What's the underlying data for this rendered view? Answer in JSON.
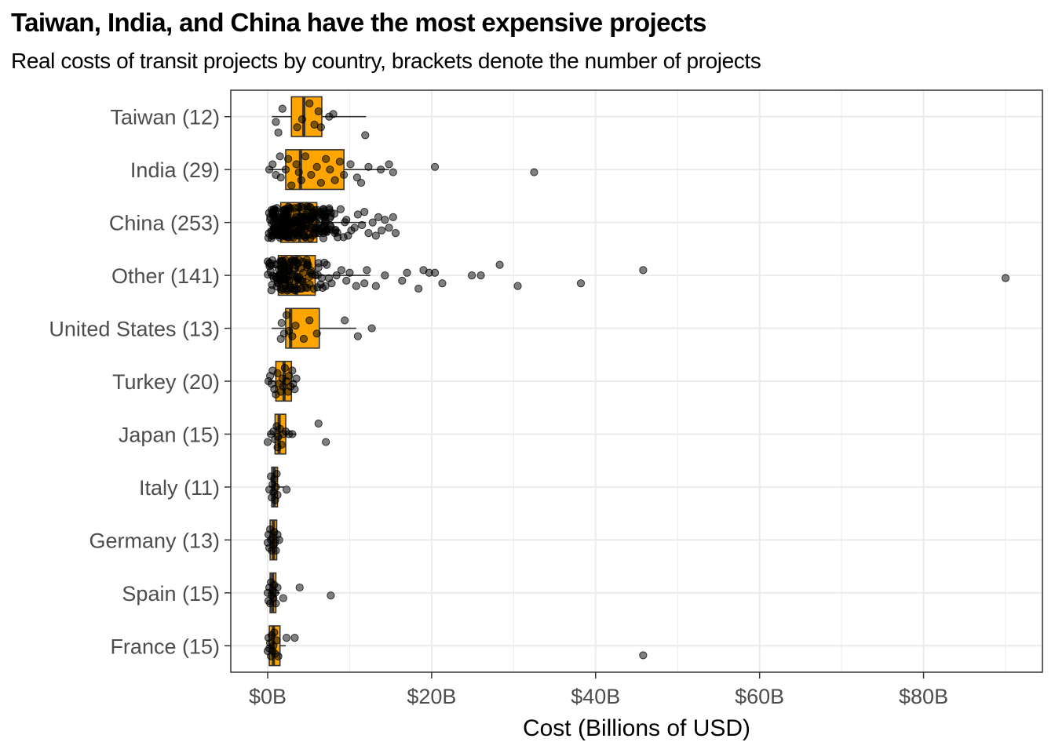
{
  "chart_data": {
    "type": "boxplot",
    "title": "Taiwan, India, and China have the most expensive projects",
    "subtitle": "Real costs of transit projects by country, brackets denote the number of projects",
    "xlabel": "Cost (Billions of USD)",
    "ylabel": "",
    "xlim": [
      -4.5,
      94.5
    ],
    "x_ticks": [
      0,
      20,
      40,
      60,
      80
    ],
    "x_tick_labels": [
      "$0B",
      "$20B",
      "$40B",
      "$60B",
      "$80B"
    ],
    "grid": true,
    "colors": {
      "box_fill": "#FFA500",
      "box_stroke": "#333333",
      "point": "#000000",
      "grid": "#ebebeb"
    },
    "categories": [
      {
        "label": "Taiwan (12)",
        "box": {
          "q1": 2.9,
          "median": 4.4,
          "q3": 6.6,
          "whisker_low": 0.5,
          "whisker_high": 12.0
        },
        "points": [
          [
            1.0,
            0.1
          ],
          [
            1.8,
            -0.15
          ],
          [
            1.3,
            0.3
          ],
          [
            3.6,
            0.2
          ],
          [
            4.2,
            0.05
          ],
          [
            5.1,
            -0.25
          ],
          [
            5.7,
            0.15
          ],
          [
            6.2,
            -0.1
          ],
          [
            6.5,
            0.2
          ],
          [
            7.5,
            0.0
          ],
          [
            11.9,
            0.35
          ],
          [
            8.0,
            -0.05
          ]
        ]
      },
      {
        "label": "India (29)",
        "box": {
          "q1": 2.2,
          "median": 4.0,
          "q3": 9.3,
          "whisker_low": 0.1,
          "whisker_high": 14.8
        },
        "points": [
          [
            0.2,
            0.0
          ],
          [
            0.6,
            -0.1
          ],
          [
            1.0,
            0.1
          ],
          [
            1.5,
            -0.25
          ],
          [
            1.6,
            0.15
          ],
          [
            2.2,
            0.0
          ],
          [
            2.5,
            -0.2
          ],
          [
            2.9,
            0.3
          ],
          [
            3.5,
            -0.1
          ],
          [
            3.8,
            0.05
          ],
          [
            4.1,
            0.2
          ],
          [
            4.6,
            -0.25
          ],
          [
            5.3,
            0.1
          ],
          [
            6.0,
            -0.05
          ],
          [
            6.5,
            0.25
          ],
          [
            7.1,
            -0.2
          ],
          [
            7.6,
            0.0
          ],
          [
            8.2,
            0.2
          ],
          [
            8.8,
            -0.15
          ],
          [
            9.3,
            0.1
          ],
          [
            10.1,
            -0.1
          ],
          [
            10.9,
            0.15
          ],
          [
            11.4,
            0.25
          ],
          [
            12.3,
            -0.05
          ],
          [
            13.8,
            0.0
          ],
          [
            14.8,
            -0.1
          ],
          [
            15.3,
            0.05
          ],
          [
            20.4,
            -0.05
          ],
          [
            32.5,
            0.05
          ]
        ]
      },
      {
        "label": "China (253)",
        "box": {
          "q1": 1.6,
          "median": 3.9,
          "q3": 6.0,
          "whisker_low": 0.0,
          "whisker_high": 12.0
        },
        "jitter": {
          "count": 220,
          "min": 0.0,
          "max": 10.0,
          "mode": 2.5
        },
        "points": [
          [
            10.6,
            0.1
          ],
          [
            11.0,
            -0.15
          ],
          [
            11.5,
            0.05
          ],
          [
            11.8,
            -0.2
          ],
          [
            12.3,
            0.2
          ],
          [
            12.8,
            0.0
          ],
          [
            13.2,
            0.25
          ],
          [
            13.5,
            -0.1
          ],
          [
            13.9,
            0.15
          ],
          [
            14.3,
            -0.05
          ],
          [
            14.8,
            0.1
          ],
          [
            15.3,
            -0.1
          ],
          [
            15.6,
            0.2
          ],
          [
            10.2,
            0.15
          ],
          [
            9.6,
            -0.05
          ],
          [
            9.8,
            0.25
          ],
          [
            8.9,
            -0.25
          ],
          [
            8.2,
            0.2
          ],
          [
            7.6,
            0.05
          ],
          [
            6.8,
            0.2
          ],
          [
            6.4,
            -0.2
          ],
          [
            5.2,
            0.3
          ],
          [
            4.8,
            -0.3
          ],
          [
            3.1,
            0.2
          ],
          [
            2.1,
            -0.25
          ],
          [
            1.4,
            0.1
          ],
          [
            0.6,
            0.25
          ],
          [
            0.3,
            -0.05
          ],
          [
            0.9,
            -0.2
          ],
          [
            1.7,
            0.05
          ],
          [
            2.7,
            0.15
          ],
          [
            3.5,
            -0.1
          ],
          [
            4.3,
            0.1
          ]
        ]
      },
      {
        "label": "Other (141)",
        "box": {
          "q1": 1.3,
          "median": 3.5,
          "q3": 5.8,
          "whisker_low": 0.0,
          "whisker_high": 12.5
        },
        "jitter": {
          "count": 112,
          "min": 0.0,
          "max": 8.0,
          "mode": 2.0
        },
        "points": [
          [
            90.0,
            0.05
          ],
          [
            45.8,
            -0.1
          ],
          [
            38.2,
            0.15
          ],
          [
            30.5,
            0.2
          ],
          [
            28.3,
            -0.2
          ],
          [
            26.0,
            0.0
          ],
          [
            24.9,
            0.0
          ],
          [
            21.3,
            0.15
          ],
          [
            20.4,
            -0.05
          ],
          [
            19.7,
            -0.05
          ],
          [
            19.0,
            -0.1
          ],
          [
            18.4,
            0.25
          ],
          [
            17.0,
            -0.05
          ],
          [
            16.4,
            0.1
          ],
          [
            14.3,
            0.0
          ],
          [
            13.2,
            0.2
          ],
          [
            12.1,
            -0.1
          ],
          [
            11.8,
            0.15
          ],
          [
            10.8,
            0.2
          ],
          [
            10.0,
            -0.05
          ],
          [
            9.6,
            0.1
          ],
          [
            9.0,
            -0.1
          ],
          [
            8.4,
            0.0
          ],
          [
            7.8,
            0.15
          ],
          [
            7.2,
            -0.2
          ],
          [
            6.6,
            0.05
          ],
          [
            6.2,
            -0.15
          ]
        ]
      },
      {
        "label": "United States (13)",
        "box": {
          "q1": 2.2,
          "median": 2.8,
          "q3": 6.3,
          "whisker_low": 0.5,
          "whisker_high": 10.8
        },
        "points": [
          [
            1.6,
            0.2
          ],
          [
            1.7,
            -0.1
          ],
          [
            2.0,
            0.1
          ],
          [
            2.3,
            -0.25
          ],
          [
            2.6,
            0.05
          ],
          [
            3.0,
            0.15
          ],
          [
            3.4,
            -0.05
          ],
          [
            4.4,
            0.2
          ],
          [
            5.1,
            -0.15
          ],
          [
            6.0,
            0.1
          ],
          [
            9.4,
            -0.15
          ],
          [
            11.0,
            0.15
          ],
          [
            12.7,
            0.0
          ]
        ]
      },
      {
        "label": "Turkey (20)",
        "box": {
          "q1": 1.0,
          "median": 2.0,
          "q3": 2.9,
          "whisker_low": 0.0,
          "whisker_high": 3.5
        },
        "points": [
          [
            0.1,
            0.0
          ],
          [
            0.3,
            -0.1
          ],
          [
            0.5,
            0.05
          ],
          [
            0.6,
            -0.2
          ],
          [
            0.8,
            0.15
          ],
          [
            1.0,
            0.25
          ],
          [
            1.2,
            -0.15
          ],
          [
            1.4,
            0.05
          ],
          [
            1.6,
            0.2
          ],
          [
            1.8,
            -0.05
          ],
          [
            1.9,
            0.1
          ],
          [
            2.1,
            -0.25
          ],
          [
            2.3,
            0.0
          ],
          [
            2.5,
            0.2
          ],
          [
            2.6,
            -0.1
          ],
          [
            2.8,
            0.1
          ],
          [
            3.0,
            -0.2
          ],
          [
            3.1,
            0.05
          ],
          [
            3.3,
            0.15
          ],
          [
            3.5,
            -0.05
          ]
        ]
      },
      {
        "label": "Japan (15)",
        "box": {
          "q1": 0.9,
          "median": 1.4,
          "q3": 2.2,
          "whisker_low": 0.0,
          "whisker_high": 3.5
        },
        "points": [
          [
            0.0,
            0.15
          ],
          [
            0.4,
            0.0
          ],
          [
            0.7,
            -0.05
          ],
          [
            0.9,
            0.1
          ],
          [
            1.1,
            -0.15
          ],
          [
            1.3,
            0.05
          ],
          [
            1.5,
            -0.1
          ],
          [
            1.7,
            0.2
          ],
          [
            1.9,
            0.0
          ],
          [
            2.2,
            -0.05
          ],
          [
            2.6,
            0.0
          ],
          [
            3.0,
            0.0
          ],
          [
            6.2,
            -0.2
          ],
          [
            7.1,
            0.15
          ],
          [
            1.2,
            0.25
          ]
        ]
      },
      {
        "label": "Italy (11)",
        "box": {
          "q1": 0.5,
          "median": 0.8,
          "q3": 1.2,
          "whisker_low": 0.2,
          "whisker_high": 2.0
        },
        "points": [
          [
            0.2,
            0.05
          ],
          [
            0.4,
            -0.2
          ],
          [
            0.5,
            0.2
          ],
          [
            0.6,
            -0.05
          ],
          [
            0.7,
            0.1
          ],
          [
            0.8,
            -0.15
          ],
          [
            0.9,
            0.25
          ],
          [
            1.0,
            0.0
          ],
          [
            1.1,
            -0.25
          ],
          [
            1.2,
            0.15
          ],
          [
            2.3,
            0.05
          ]
        ]
      },
      {
        "label": "Germany (13)",
        "box": {
          "q1": 0.3,
          "median": 0.7,
          "q3": 1.1,
          "whisker_low": 0.0,
          "whisker_high": 1.5
        },
        "points": [
          [
            0.0,
            0.05
          ],
          [
            0.1,
            -0.1
          ],
          [
            0.2,
            0.15
          ],
          [
            0.3,
            -0.2
          ],
          [
            0.4,
            0.0
          ],
          [
            0.5,
            0.2
          ],
          [
            0.6,
            -0.05
          ],
          [
            0.7,
            0.1
          ],
          [
            0.8,
            -0.15
          ],
          [
            0.9,
            0.05
          ],
          [
            1.0,
            0.2
          ],
          [
            1.2,
            -0.1
          ],
          [
            1.4,
            0.0
          ]
        ]
      },
      {
        "label": "Spain (15)",
        "box": {
          "q1": 0.3,
          "median": 0.6,
          "q3": 1.0,
          "whisker_low": 0.0,
          "whisker_high": 1.5
        },
        "points": [
          [
            0.0,
            0.0
          ],
          [
            0.1,
            0.15
          ],
          [
            0.2,
            -0.1
          ],
          [
            0.3,
            0.2
          ],
          [
            0.4,
            -0.2
          ],
          [
            0.5,
            0.05
          ],
          [
            0.6,
            -0.05
          ],
          [
            0.7,
            0.1
          ],
          [
            0.8,
            -0.15
          ],
          [
            0.9,
            0.0
          ],
          [
            1.0,
            0.2
          ],
          [
            1.2,
            -0.1
          ],
          [
            1.9,
            0.1
          ],
          [
            3.9,
            -0.1
          ],
          [
            7.7,
            0.05
          ]
        ]
      },
      {
        "label": "France (15)",
        "box": {
          "q1": 0.2,
          "median": 0.7,
          "q3": 1.5,
          "whisker_low": 0.0,
          "whisker_high": 2.2
        },
        "points": [
          [
            0.0,
            0.1
          ],
          [
            0.1,
            -0.15
          ],
          [
            0.2,
            0.05
          ],
          [
            0.3,
            -0.05
          ],
          [
            0.4,
            0.2
          ],
          [
            0.5,
            -0.2
          ],
          [
            0.6,
            0.1
          ],
          [
            0.7,
            0.0
          ],
          [
            0.8,
            -0.25
          ],
          [
            0.9,
            0.15
          ],
          [
            1.1,
            -0.1
          ],
          [
            1.3,
            0.2
          ],
          [
            2.3,
            -0.15
          ],
          [
            3.3,
            -0.15
          ],
          [
            45.8,
            0.18
          ]
        ]
      }
    ]
  }
}
